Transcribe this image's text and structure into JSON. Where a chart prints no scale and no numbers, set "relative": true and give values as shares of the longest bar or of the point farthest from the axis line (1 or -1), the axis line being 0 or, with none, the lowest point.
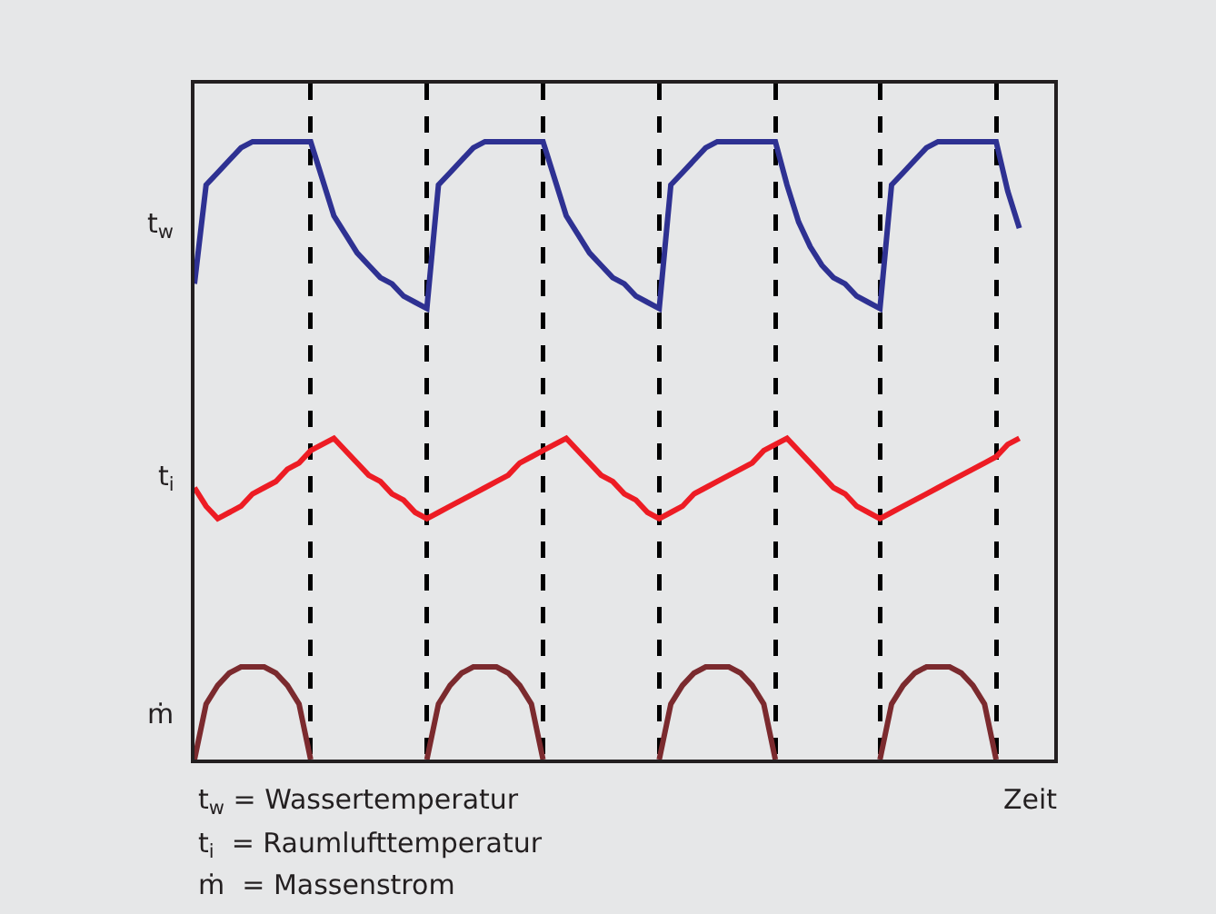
{
  "chart_data": {
    "type": "line",
    "relative": true,
    "xlabel": "Zeit",
    "grid": "x",
    "legend": false,
    "line_style": "solid",
    "marker": "none",
    "categories": [
      null,
      null,
      null,
      null,
      null,
      null,
      null,
      null,
      null,
      null,
      null,
      null,
      null,
      null,
      null,
      null,
      null,
      null,
      null,
      null,
      null,
      null,
      null,
      null,
      null,
      null,
      null,
      null,
      null,
      null,
      null,
      null,
      null,
      null,
      null,
      null,
      null,
      null,
      null,
      null,
      null,
      null,
      null,
      null,
      null,
      null,
      null,
      null,
      null,
      null,
      null,
      null,
      null,
      null,
      null,
      null,
      null,
      null,
      null,
      null,
      null,
      null,
      null,
      null,
      null,
      null,
      null,
      null,
      null,
      null,
      null,
      null,
      null,
      null,
      null
    ],
    "series": [
      {
        "name": "t$_{w}$",
        "color": "#2e3192",
        "values": [
          0.77,
          0.93,
          0.95,
          0.97,
          0.99,
          1,
          1,
          1,
          1,
          1,
          1,
          0.94,
          0.88,
          0.85,
          0.82,
          0.8,
          0.78,
          0.77,
          0.75,
          0.74,
          0.73,
          0.93,
          0.95,
          0.97,
          0.99,
          1,
          1,
          1,
          1,
          1,
          1,
          0.94,
          0.88,
          0.85,
          0.82,
          0.8,
          0.78,
          0.77,
          0.75,
          0.74,
          0.73,
          0.93,
          0.95,
          0.97,
          0.99,
          1,
          1,
          1,
          1,
          1,
          1,
          0.93,
          0.87,
          0.83,
          0.8,
          0.78,
          0.77,
          0.75,
          0.74,
          0.73,
          0.93,
          0.95,
          0.97,
          0.99,
          1,
          1,
          1,
          1,
          1,
          1,
          0.92,
          0.86,
          null,
          null,
          null
        ]
      },
      {
        "name": "t$_{i}$",
        "color": "#ed1c24",
        "values": [
          0.44,
          0.41,
          0.39,
          0.4,
          0.41,
          0.43,
          0.44,
          0.45,
          0.47,
          0.48,
          0.5,
          0.51,
          0.52,
          0.5,
          0.48,
          0.46,
          0.45,
          0.43,
          0.42,
          0.4,
          0.39,
          0.4,
          0.41,
          0.42,
          0.43,
          0.44,
          0.45,
          0.46,
          0.48,
          0.49,
          0.5,
          0.51,
          0.52,
          0.5,
          0.48,
          0.46,
          0.45,
          0.43,
          0.42,
          0.4,
          0.39,
          0.4,
          0.41,
          0.43,
          0.44,
          0.45,
          0.46,
          0.47,
          0.48,
          0.5,
          0.51,
          0.52,
          0.5,
          0.48,
          0.46,
          0.44,
          0.43,
          0.41,
          0.4,
          0.39,
          0.4,
          0.41,
          0.42,
          0.43,
          0.44,
          0.45,
          0.46,
          0.47,
          0.48,
          0.49,
          0.51,
          0.52,
          null,
          null,
          null
        ]
      },
      {
        "name": "ṁ",
        "color": "#7b2a2e",
        "values": [
          0,
          0.09,
          0.12,
          0.14,
          0.15,
          0.15,
          0.15,
          0.14,
          0.12,
          0.09,
          0,
          null,
          null,
          null,
          null,
          null,
          null,
          null,
          null,
          null,
          0,
          0.09,
          0.12,
          0.14,
          0.15,
          0.15,
          0.15,
          0.14,
          0.12,
          0.09,
          0,
          null,
          null,
          null,
          null,
          null,
          null,
          null,
          null,
          null,
          0,
          0.09,
          0.12,
          0.14,
          0.15,
          0.15,
          0.15,
          0.14,
          0.12,
          0.09,
          0,
          null,
          null,
          null,
          null,
          null,
          null,
          null,
          null,
          0,
          0.09,
          0.12,
          0.14,
          0.15,
          0.15,
          0.15,
          0.14,
          0.12,
          0.09,
          0,
          null,
          null,
          null,
          null,
          null
        ]
      }
    ],
    "annotations": [
      "t$_{w}$ = Wassertemperatur",
      "t$_{i}$  = Raumlufttemperatur",
      "ṁ  = Massenstrom"
    ]
  }
}
